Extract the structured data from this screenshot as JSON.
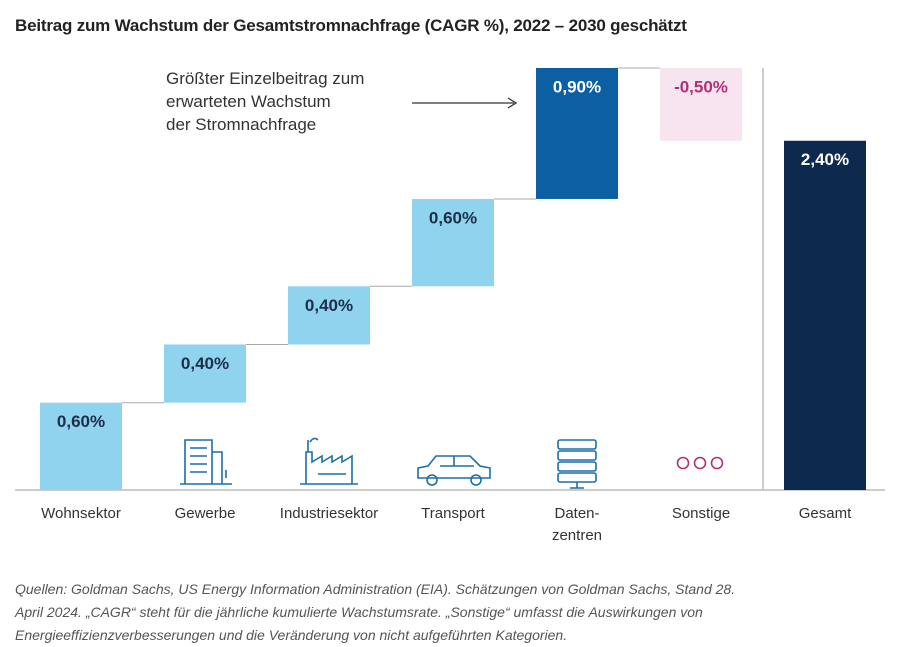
{
  "chart_data": {
    "type": "waterfall",
    "title": "Beitrag zum Wachstum der Gesamtstromnachfrage (CAGR %), 2022 – 2030 geschätzt",
    "categories": [
      "Wohnsektor",
      "Gewerbe",
      "Industriesektor",
      "Transport",
      "Daten-\nzentren",
      "Sonstige",
      "Gesamt"
    ],
    "values": [
      0.6,
      0.4,
      0.4,
      0.6,
      0.9,
      -0.5,
      2.4
    ],
    "value_labels": [
      "0,60%",
      "0,40%",
      "0,40%",
      "0,60%",
      "0,90%",
      "-0,50%",
      "2,40%"
    ],
    "colors": [
      "#8fd3ef",
      "#8fd3ef",
      "#8fd3ef",
      "#8fd3ef",
      "#0d5fa3",
      "#f7e4ee",
      "#0d2a4e"
    ],
    "label_colors": [
      "#1c2e4a",
      "#1c2e4a",
      "#1c2e4a",
      "#1c2e4a",
      "#ffffff",
      "#b0307a",
      "#ffffff"
    ],
    "annotation": [
      "Größter Einzelbeitrag zum",
      "erwarteten Wachstum",
      "der Stromnachfrage"
    ],
    "note": [
      "Quellen: Goldman Sachs, US Energy Information Administration (EIA). Schätzungen von Goldman Sachs, Stand 28.",
      "April 2024. „CAGR“ steht für die jährliche kumulierte Wachstumsrate. „Sonstige“ umfasst die Auswirkungen von",
      "Energieeffizienzverbesserungen und die Veränderung von nicht aufgeführten Kategorien."
    ]
  }
}
